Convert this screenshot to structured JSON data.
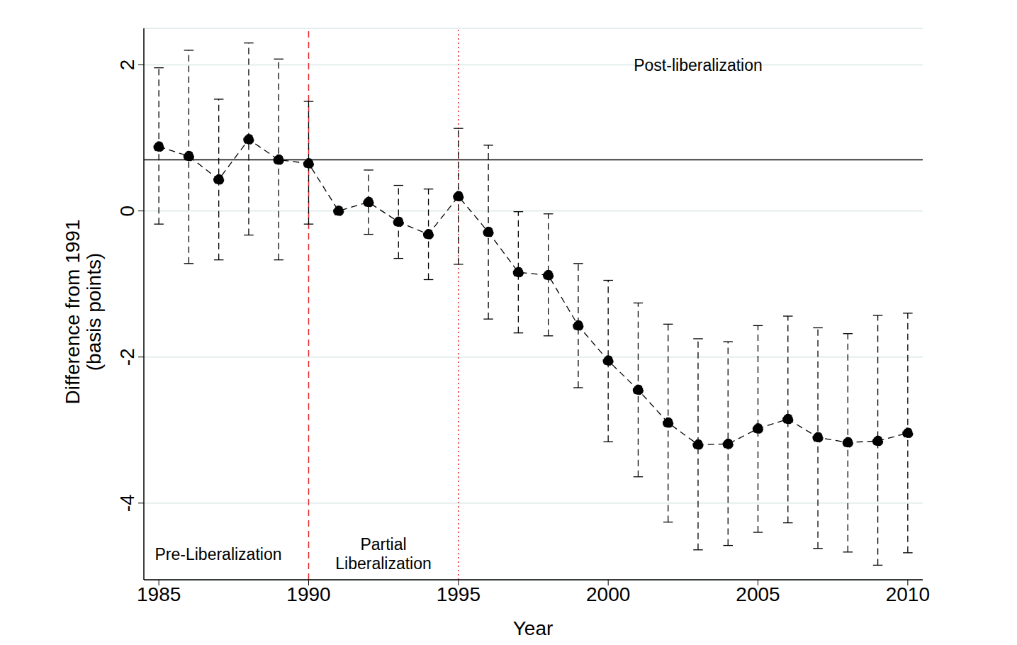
{
  "chart_data": {
    "type": "line",
    "x_label": "Year",
    "y_label": "Difference from 1991\n(basis points)",
    "annotations": [
      "Post-liberalization",
      "Pre-Liberalization",
      "Partial\nLiberalization"
    ],
    "x": [
      1985,
      1986,
      1987,
      1988,
      1989,
      1990,
      1991,
      1992,
      1993,
      1994,
      1995,
      1996,
      1997,
      1998,
      1999,
      2000,
      2001,
      2002,
      2003,
      2004,
      2005,
      2006,
      2007,
      2008,
      2009,
      2010
    ],
    "values": [
      0.88,
      0.75,
      0.43,
      0.98,
      0.7,
      0.65,
      0.0,
      0.12,
      -0.15,
      -0.32,
      0.2,
      -0.29,
      -0.84,
      -0.88,
      -1.57,
      -2.05,
      -2.45,
      -2.9,
      -3.2,
      -3.19,
      -2.98,
      -2.85,
      -3.1,
      -3.17,
      -3.15,
      -3.04
    ],
    "ci_low": [
      -0.18,
      -0.72,
      -0.67,
      -0.33,
      -0.67,
      -0.18,
      null,
      -0.32,
      -0.65,
      -0.94,
      -0.73,
      -1.48,
      -1.67,
      -1.71,
      -2.42,
      -3.16,
      -3.64,
      -4.26,
      -4.64,
      -4.58,
      -4.4,
      -4.27,
      -4.62,
      -4.67,
      -4.85,
      -4.68
    ],
    "ci_high": [
      1.96,
      2.2,
      1.53,
      2.3,
      2.08,
      1.5,
      null,
      0.56,
      0.35,
      0.3,
      1.13,
      0.9,
      -0.01,
      -0.04,
      -0.72,
      -0.95,
      -1.26,
      -1.55,
      -1.75,
      -1.79,
      -1.57,
      -1.44,
      -1.6,
      -1.68,
      -1.43,
      -1.4
    ],
    "color": "#000000",
    "marker": "circle",
    "line_style": "dashed",
    "hline": 0.7,
    "vlines": [
      {
        "x": 1990,
        "line_style": "dashed",
        "color": "#e8262a"
      },
      {
        "x": 1995,
        "line_style": "dotted",
        "color": "#e8262a"
      }
    ],
    "xlim": [
      1984.5,
      2010.5
    ],
    "xticks": [
      1985,
      1990,
      1995,
      2000,
      2005,
      2010
    ],
    "ylim": [
      -5.05,
      2.5
    ],
    "yticks": [
      -4,
      -2,
      0,
      2
    ],
    "grid": true
  }
}
